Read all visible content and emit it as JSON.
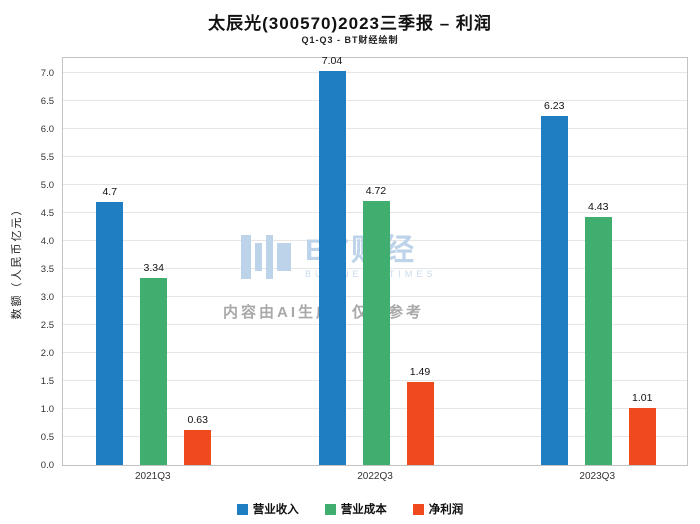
{
  "title": "太辰光(300570)2023三季报 – 利润",
  "subtitle": "Q1-Q3 - BT财经绘制",
  "watermark": {
    "logo_text": "BT财经",
    "logo_sub": "BUSINESS TIMES",
    "ai_note": "内容由AI生成，仅供参考"
  },
  "chart_data": {
    "type": "bar",
    "title": "太辰光(300570)2023三季报 – 利润",
    "subtitle": "Q1-Q3 - BT财经绘制",
    "categories": [
      "2021Q3",
      "2022Q3",
      "2023Q3"
    ],
    "series": [
      {
        "name": "营业收入",
        "color": "#1f7ec2",
        "values": [
          4.7,
          7.04,
          6.23
        ]
      },
      {
        "name": "营业成本",
        "color": "#3fae6e",
        "values": [
          3.34,
          4.72,
          4.43
        ]
      },
      {
        "name": "净利润",
        "color": "#f0491d",
        "values": [
          0.63,
          1.49,
          1.01
        ]
      }
    ],
    "xlabel": "",
    "ylabel": "数额（人民币亿元）",
    "ylim": [
      0,
      7.3
    ],
    "yticks": [
      0.0,
      0.5,
      1.0,
      1.5,
      2.0,
      2.5,
      3.0,
      3.5,
      4.0,
      4.5,
      5.0,
      5.5,
      6.0,
      6.5,
      7.0
    ],
    "grid": true,
    "legend_position": "bottom"
  }
}
